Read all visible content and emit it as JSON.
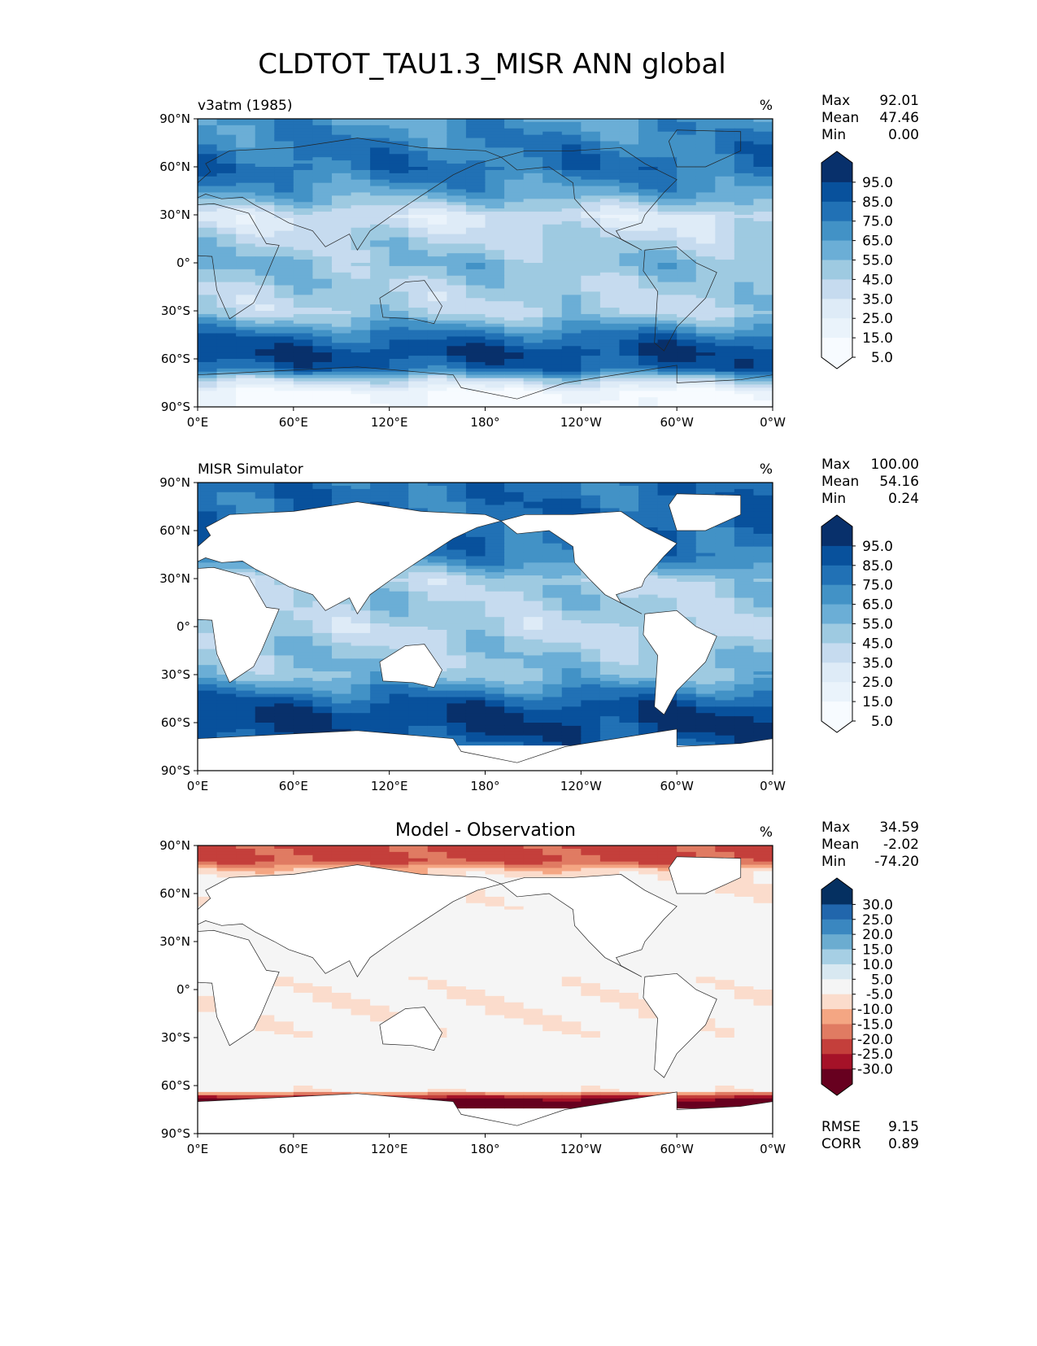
{
  "chart_data": {
    "type": "heatmap",
    "title": "CLDTOT_TAU1.3_MISR ANN global",
    "x_ticks": [
      "0°E",
      "60°E",
      "120°E",
      "180°",
      "120°W",
      "60°W",
      "0°W"
    ],
    "y_ticks": [
      "90°N",
      "60°N",
      "30°N",
      "0°",
      "30°S",
      "60°S",
      "90°S"
    ],
    "xlim": [
      0,
      360
    ],
    "ylim": [
      -90,
      90
    ],
    "panels": [
      {
        "title": "v3atm (1985)",
        "units": "%",
        "title_pos": "left",
        "stats": [
          {
            "label": "Max",
            "value": "92.01"
          },
          {
            "label": "Mean",
            "value": "47.46"
          },
          {
            "label": "Min",
            "value": "0.00"
          }
        ],
        "colorbar": {
          "labels": [
            "95.0",
            "85.0",
            "75.0",
            "65.0",
            "55.0",
            "45.0",
            "35.0",
            "25.0",
            "15.0",
            "5.0"
          ],
          "colors": [
            "#08306b",
            "#08519c",
            "#2171b5",
            "#4292c6",
            "#6baed6",
            "#9ecae1",
            "#c6dbef",
            "#deebf7",
            "#eaf3fb",
            "#f7fbff"
          ]
        },
        "zonal_mean": [
          [
            90,
            62
          ],
          [
            75,
            70
          ],
          [
            60,
            75
          ],
          [
            45,
            60
          ],
          [
            30,
            28
          ],
          [
            15,
            40
          ],
          [
            0,
            50
          ],
          [
            -15,
            42
          ],
          [
            -30,
            40
          ],
          [
            -45,
            75
          ],
          [
            -55,
            88
          ],
          [
            -65,
            80
          ],
          [
            -72,
            40
          ],
          [
            -80,
            8
          ],
          [
            -90,
            3
          ]
        ],
        "land_masked": false
      },
      {
        "title": "MISR Simulator",
        "units": "%",
        "title_pos": "left",
        "stats": [
          {
            "label": "Max",
            "value": "100.00"
          },
          {
            "label": "Mean",
            "value": "54.16"
          },
          {
            "label": "Min",
            "value": "0.24"
          }
        ],
        "colorbar": {
          "labels": [
            "95.0",
            "85.0",
            "75.0",
            "65.0",
            "55.0",
            "45.0",
            "35.0",
            "25.0",
            "15.0",
            "5.0"
          ],
          "colors": [
            "#08306b",
            "#08519c",
            "#2171b5",
            "#4292c6",
            "#6baed6",
            "#9ecae1",
            "#c6dbef",
            "#deebf7",
            "#eaf3fb",
            "#f7fbff"
          ]
        },
        "zonal_mean": [
          [
            82,
            75
          ],
          [
            70,
            78
          ],
          [
            55,
            78
          ],
          [
            45,
            70
          ],
          [
            30,
            40
          ],
          [
            15,
            45
          ],
          [
            0,
            38
          ],
          [
            -15,
            45
          ],
          [
            -30,
            50
          ],
          [
            -45,
            80
          ],
          [
            -55,
            90
          ],
          [
            -65,
            88
          ],
          [
            -72,
            80
          ]
        ],
        "land_masked": true
      },
      {
        "title": "Model - Observation",
        "units": "%",
        "title_pos": "center",
        "stats": [
          {
            "label": "Max",
            "value": "34.59"
          },
          {
            "label": "Mean",
            "value": "-2.02"
          },
          {
            "label": "Min",
            "value": "-74.20"
          }
        ],
        "extra_stats": [
          {
            "label": "RMSE",
            "value": "9.15"
          },
          {
            "label": "CORR",
            "value": "0.89"
          }
        ],
        "colorbar": {
          "labels": [
            "30.0",
            "25.0",
            "20.0",
            "15.0",
            "10.0",
            "5.0",
            "-5.0",
            "-10.0",
            "-15.0",
            "-20.0",
            "-25.0",
            "-30.0"
          ],
          "colors": [
            "#053061",
            "#2166ac",
            "#3a87c0",
            "#6bacd0",
            "#a6cfe4",
            "#d8e8f1",
            "#f5f5f5",
            "#fbdccc",
            "#f4a683",
            "#e07b62",
            "#c43f3b",
            "#a51228",
            "#67001f"
          ]
        },
        "zonal_mean": [
          [
            82,
            -22
          ],
          [
            75,
            -8
          ],
          [
            60,
            -3
          ],
          [
            30,
            0
          ],
          [
            10,
            -2
          ],
          [
            0,
            -3
          ],
          [
            -15,
            -4
          ],
          [
            -30,
            -2
          ],
          [
            -50,
            2
          ],
          [
            -62,
            -3
          ],
          [
            -67,
            -30
          ],
          [
            -72,
            -40
          ]
        ],
        "land_masked": true
      }
    ]
  }
}
